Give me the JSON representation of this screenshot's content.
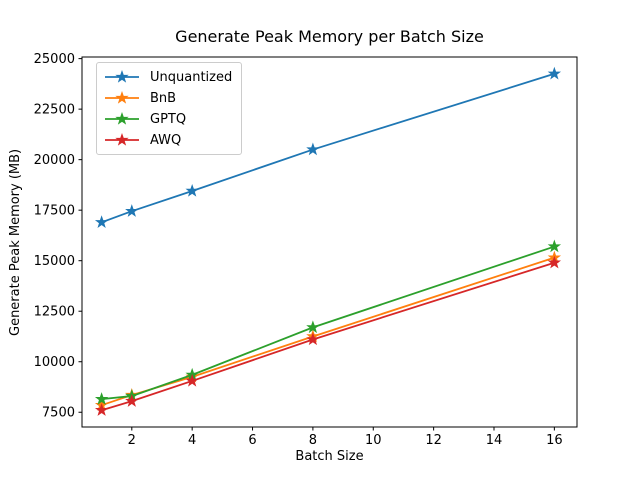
{
  "figure": {
    "background": "#ffffff",
    "text_color": "#000000",
    "axis_color": "#000000"
  },
  "chart_data": {
    "type": "line",
    "title": "Generate Peak Memory per Batch Size",
    "xlabel": "Batch Size",
    "ylabel": "Generate Peak Memory (MB)",
    "x": [
      1,
      2,
      4,
      8,
      16
    ],
    "series": [
      {
        "name": "Unquantized",
        "color": "#1f77b4",
        "values": [
          16900,
          17450,
          18450,
          20500,
          24250
        ]
      },
      {
        "name": "BnB",
        "color": "#ff7f0e",
        "values": [
          7850,
          8350,
          9250,
          11250,
          15150
        ]
      },
      {
        "name": "GPTQ",
        "color": "#2ca02c",
        "values": [
          8150,
          8300,
          9350,
          11700,
          15700
        ]
      },
      {
        "name": "AWQ",
        "color": "#d62728",
        "values": [
          7600,
          8050,
          9050,
          11100,
          14900
        ]
      }
    ],
    "marker": "star",
    "line_width": 1.8,
    "xticks": [
      2,
      4,
      6,
      8,
      10,
      12,
      14,
      16
    ],
    "yticks": [
      7500,
      10000,
      12500,
      15000,
      17500,
      20000,
      22500,
      25000
    ],
    "xlim": [
      0.35,
      16.75
    ],
    "ylim": [
      6770,
      25080
    ],
    "grid": false,
    "legend_position": "upper-left"
  }
}
